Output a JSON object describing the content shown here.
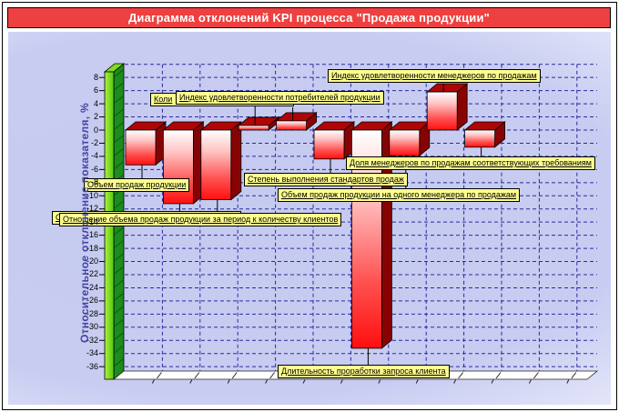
{
  "window": {
    "title": "Диаграмма отклонений KPI процесса \"Продажа продукции\""
  },
  "y_axis": {
    "title": "Относительное отклонение показателя, %",
    "max": 8,
    "min": -36,
    "step": 2,
    "ticks": [
      8,
      6,
      4,
      2,
      0,
      -2,
      -4,
      -6,
      -8,
      -10,
      -12,
      -14,
      -16,
      -18,
      -20,
      -22,
      -24,
      -26,
      -28,
      -30,
      -32,
      -34,
      -36
    ]
  },
  "chart_data": {
    "type": "bar",
    "title": "Диаграмма отклонений KPI процесса \"Продажа продукции\"",
    "ylabel": "Относительное отклонение показателя, %",
    "ylim": [
      -36,
      10
    ],
    "ytick_step": 2,
    "grid": true,
    "legend": "none",
    "bars": [
      {
        "label": "Объем продаж продукции",
        "value": -5.3
      },
      {
        "label": "Отношение объема продаж продукции за период к количеству клиентов",
        "value": -11.2
      },
      {
        "label": "О",
        "value": -10.6,
        "label_hidden_behind_other_callout": true
      },
      {
        "label": "Индекс удовлетворенности потребителей продукции",
        "value": 0.7
      },
      {
        "label": "Коли",
        "value": 1.4,
        "label_hidden_behind_other_callout": true
      },
      {
        "label": "Степень выполнения стандартов продаж",
        "value": -4.4
      },
      {
        "label": "Длительность проработки запроса клиента",
        "value": -33.2
      },
      {
        "label": "Объем продаж продукции на одного менеджера по продажам",
        "value": -3.9
      },
      {
        "label": "Индекс удовлетворенности менеджеров по продажам",
        "value": 5.8
      },
      {
        "label": "Доля менеджеров по продажам соответствующих требованиям",
        "value": -2.6
      }
    ]
  },
  "colors": {
    "title_bg": "#ee4040",
    "title_text": "#ffffff",
    "callout_bg": "#ffff8f",
    "bar_face_bottom": "#ff0f0f",
    "bar_side": "#870303",
    "bar_top": "#b00505",
    "wall_front": "#7ddd1e",
    "wall_side": "#1c8c1c",
    "grid": "#2b2ba0",
    "plot_bg_center": "#c5caef",
    "axis_title": "#4444a6"
  }
}
